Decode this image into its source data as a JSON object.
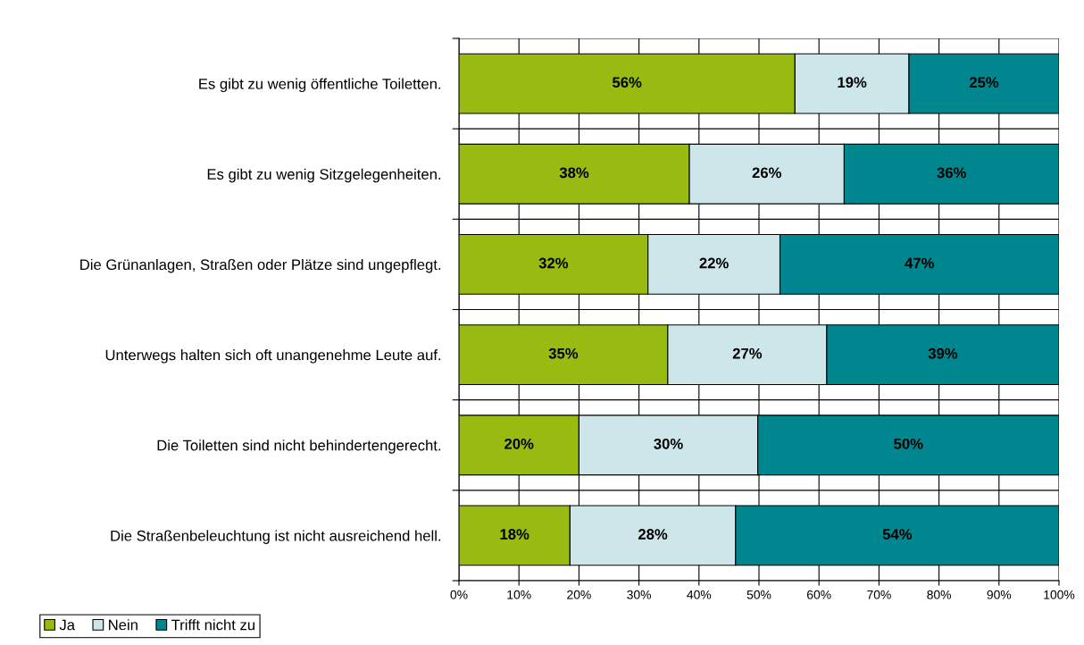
{
  "chart_data": {
    "type": "bar",
    "orientation": "horizontal",
    "stacked": true,
    "categories": [
      "Es gibt zu wenig öffentliche Toiletten.",
      "Es gibt zu wenig Sitzgelegenheiten.",
      "Die Grünanlagen, Straßen oder Plätze sind ungepflegt.",
      "Unterwegs halten sich oft unangenehme Leute auf.",
      "Die Toiletten sind nicht behindertengerecht.",
      "Die Straßenbeleuchtung ist nicht ausreichend hell."
    ],
    "series": [
      {
        "name": "Ja",
        "color": "#99bb11",
        "values": [
          56,
          38.4,
          31.5,
          34.8,
          20,
          18.5
        ],
        "value_labels": [
          "56%",
          "38%",
          "32%",
          "35%",
          "20%",
          "18%"
        ]
      },
      {
        "name": "Nein",
        "color": "#cce6ea",
        "values": [
          19,
          25.8,
          22.0,
          26.5,
          29.8,
          27.6
        ],
        "value_labels": [
          "19%",
          "26%",
          "22%",
          "27%",
          "30%",
          "28%"
        ]
      },
      {
        "name": "Trifft nicht zu",
        "color": "#00868f",
        "values": [
          25,
          35.8,
          46.5,
          38.7,
          50.2,
          53.9
        ],
        "value_labels": [
          "25%",
          "36%",
          "47%",
          "39%",
          "50%",
          "54%"
        ]
      }
    ],
    "xlim": [
      0,
      100
    ],
    "xticks": [
      {
        "value": 0,
        "label": "0%"
      },
      {
        "value": 10,
        "label": "10%"
      },
      {
        "value": 20,
        "label": "20%"
      },
      {
        "value": 30,
        "label": "30%"
      },
      {
        "value": 40,
        "label": "40%"
      },
      {
        "value": 50,
        "label": "50%"
      },
      {
        "value": 60,
        "label": "60%"
      },
      {
        "value": 70,
        "label": "70%"
      },
      {
        "value": 80,
        "label": "80%"
      },
      {
        "value": 90,
        "label": "90%"
      },
      {
        "value": 100,
        "label": "100%"
      }
    ],
    "grid": true,
    "legend": "bottom left"
  }
}
